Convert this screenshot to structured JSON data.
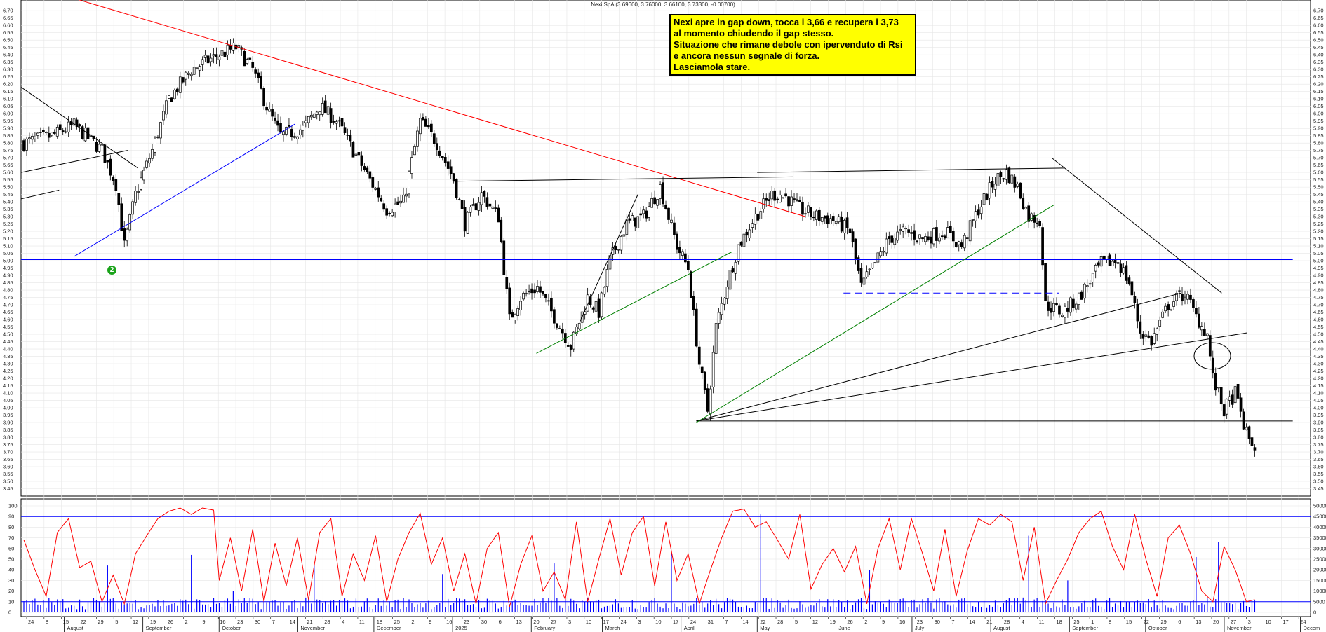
{
  "header": {
    "title": "Nexi SpA (3.69600, 3.76000, 3.66100, 3.73300, -0.00700)"
  },
  "note": {
    "lines": [
      "Nexi apre in gap down, tocca i 3,66 e recupera i 3,73",
      "al momento chiudendo il gap stesso.",
      "Situazione che rimane debole con ipervenduto di Rsi",
      "e ancora nessun segnale di forza.",
      "Lasciamola stare."
    ]
  },
  "badge": {
    "label": "2"
  },
  "chart_data": [
    {
      "type": "candlestick",
      "panel": "price",
      "ylim": [
        3.4,
        6.72
      ],
      "yticks": [
        "6.70",
        "6.65",
        "6.60",
        "6.55",
        "6.50",
        "6.45",
        "6.40",
        "6.35",
        "6.30",
        "6.25",
        "6.20",
        "6.15",
        "6.10",
        "6.05",
        "6.00",
        "5.95",
        "5.90",
        "5.85",
        "5.80",
        "5.75",
        "5.70",
        "5.65",
        "5.60",
        "5.55",
        "5.50",
        "5.45",
        "5.40",
        "5.35",
        "5.30",
        "5.25",
        "5.20",
        "5.15",
        "5.10",
        "5.05",
        "5.00",
        "4.95",
        "4.90",
        "4.85",
        "4.80",
        "4.75",
        "4.70",
        "4.65",
        "4.60",
        "4.55",
        "4.50",
        "4.45",
        "4.40",
        "4.35",
        "4.30",
        "4.25",
        "4.20",
        "4.15",
        "4.10",
        "4.05",
        "4.00",
        "3.95",
        "3.90",
        "3.85",
        "3.80",
        "3.75",
        "3.70",
        "3.65",
        "3.60",
        "3.55",
        "3.50",
        "3.45"
      ],
      "close_anchors": [
        [
          0,
          5.8
        ],
        [
          10,
          5.85
        ],
        [
          18,
          5.92
        ],
        [
          28,
          5.75
        ],
        [
          33,
          5.52
        ],
        [
          36,
          5.1
        ],
        [
          40,
          5.45
        ],
        [
          46,
          5.75
        ],
        [
          52,
          6.1
        ],
        [
          60,
          6.3
        ],
        [
          70,
          6.4
        ],
        [
          76,
          6.45
        ],
        [
          82,
          6.3
        ],
        [
          88,
          6.0
        ],
        [
          92,
          5.85
        ],
        [
          100,
          5.9
        ],
        [
          106,
          6.05
        ],
        [
          112,
          5.95
        ],
        [
          118,
          5.75
        ],
        [
          124,
          5.55
        ],
        [
          130,
          5.35
        ],
        [
          136,
          5.4
        ],
        [
          142,
          5.95
        ],
        [
          148,
          5.8
        ],
        [
          154,
          5.55
        ],
        [
          158,
          5.25
        ],
        [
          164,
          5.45
        ],
        [
          170,
          5.3
        ],
        [
          174,
          4.6
        ],
        [
          178,
          4.75
        ],
        [
          184,
          4.82
        ],
        [
          190,
          4.62
        ],
        [
          196,
          4.42
        ],
        [
          202,
          4.75
        ],
        [
          206,
          4.65
        ],
        [
          210,
          5.0
        ],
        [
          216,
          5.25
        ],
        [
          222,
          5.3
        ],
        [
          228,
          5.5
        ],
        [
          234,
          5.1
        ],
        [
          238,
          4.95
        ],
        [
          242,
          4.3
        ],
        [
          245,
          3.98
        ],
        [
          248,
          4.55
        ],
        [
          252,
          4.85
        ],
        [
          256,
          5.1
        ],
        [
          262,
          5.3
        ],
        [
          268,
          5.45
        ],
        [
          272,
          5.45
        ],
        [
          278,
          5.35
        ],
        [
          284,
          5.3
        ],
        [
          290,
          5.28
        ],
        [
          296,
          5.2
        ],
        [
          300,
          4.82
        ],
        [
          304,
          4.95
        ],
        [
          310,
          5.15
        ],
        [
          316,
          5.2
        ],
        [
          322,
          5.15
        ],
        [
          330,
          5.2
        ],
        [
          336,
          5.1
        ],
        [
          342,
          5.35
        ],
        [
          348,
          5.55
        ],
        [
          352,
          5.6
        ],
        [
          356,
          5.5
        ],
        [
          360,
          5.3
        ],
        [
          364,
          5.28
        ],
        [
          366,
          4.7
        ],
        [
          372,
          4.65
        ],
        [
          378,
          4.75
        ],
        [
          386,
          4.98
        ],
        [
          392,
          5.0
        ],
        [
          396,
          4.85
        ],
        [
          400,
          4.52
        ],
        [
          404,
          4.45
        ],
        [
          410,
          4.7
        ],
        [
          416,
          4.78
        ],
        [
          420,
          4.62
        ],
        [
          424,
          4.5
        ],
        [
          426,
          4.2
        ],
        [
          430,
          3.98
        ],
        [
          434,
          4.1
        ],
        [
          438,
          3.82
        ],
        [
          441,
          3.73
        ]
      ],
      "lines": [
        {
          "color": "#ff0000",
          "points": [
            [
              "2024-07-23",
              6.85
            ],
            [
              "2025-05-20",
              5.3
            ]
          ]
        },
        {
          "color": "#0000ff",
          "points": [
            [
              "2024-08-05",
              5.03
            ],
            [
              "2024-10-31",
              5.93
            ]
          ]
        },
        {
          "color": "#0000ff",
          "points": [
            [
              "2024-07-15",
              5.01
            ],
            [
              "2025-11-28",
              5.01
            ]
          ],
          "width": 2
        },
        {
          "color": "#000000",
          "points": [
            [
              "2024-07-15",
              5.97
            ],
            [
              "2025-11-28",
              5.97
            ]
          ]
        },
        {
          "color": "#000000",
          "points": [
            [
              "2025-02-01",
              4.36
            ],
            [
              "2025-11-28",
              4.36
            ]
          ]
        },
        {
          "color": "#000000",
          "points": [
            [
              "2025-04-07",
              3.91
            ],
            [
              "2025-11-28",
              3.91
            ]
          ]
        },
        {
          "color": "#000000",
          "points": [
            [
              "2024-07-15",
              6.18
            ],
            [
              "2024-08-30",
              5.63
            ]
          ]
        },
        {
          "color": "#000000",
          "points": [
            [
              "2024-07-15",
              5.42
            ],
            [
              "2024-07-30",
              5.48
            ]
          ]
        },
        {
          "color": "#000000",
          "points": [
            [
              "2024-07-15",
              5.6
            ],
            [
              "2024-08-26",
              5.75
            ]
          ]
        },
        {
          "color": "#000000",
          "points": [
            [
              "2025-01-01",
              5.54
            ],
            [
              "2025-05-15",
              5.57
            ]
          ]
        },
        {
          "color": "#000000",
          "points": [
            [
              "2025-05-01",
              5.6
            ],
            [
              "2025-08-30",
              5.63
            ]
          ]
        },
        {
          "color": "#000000",
          "points": [
            [
              "2025-08-25",
              5.7
            ],
            [
              "2025-10-31",
              4.78
            ]
          ]
        },
        {
          "color": "#000000",
          "points": [
            [
              "2025-02-20",
              4.58
            ],
            [
              "2025-03-15",
              5.45
            ]
          ]
        },
        {
          "color": "#000000",
          "points": [
            [
              "2025-04-07",
              3.91
            ],
            [
              "2025-11-10",
              4.51
            ]
          ]
        },
        {
          "color": "#000000",
          "points": [
            [
              "2025-04-07",
              3.91
            ],
            [
              "2025-10-15",
              4.78
            ]
          ]
        },
        {
          "color": "#008000",
          "points": [
            [
              "2025-02-03",
              4.37
            ],
            [
              "2025-04-21",
              5.06
            ]
          ]
        },
        {
          "color": "#008000",
          "points": [
            [
              "2025-04-07",
              3.9
            ],
            [
              "2025-08-26",
              5.38
            ]
          ]
        },
        {
          "color": "#0000ff",
          "points": [
            [
              "2025-06-04",
              4.78
            ],
            [
              "2025-08-28",
              4.78
            ]
          ],
          "dash": "10,6"
        }
      ]
    },
    {
      "type": "line+bar",
      "panel": "rsi_volume",
      "ylim_rsi": [
        0,
        100
      ],
      "yticks_rsi": [
        "100",
        "90",
        "80",
        "70",
        "60",
        "50",
        "40",
        "30",
        "20",
        "10",
        "0"
      ],
      "ylim_volume": [
        0,
        50000
      ],
      "yticks_volume": [
        "50000",
        "45000",
        "40000",
        "35000",
        "30000",
        "25000",
        "20000",
        "15000",
        "10000",
        "5000",
        "0"
      ],
      "hlines_rsi": [
        90,
        10
      ],
      "rsi_anchors": [
        [
          0,
          68
        ],
        [
          4,
          40
        ],
        [
          8,
          15
        ],
        [
          12,
          75
        ],
        [
          16,
          88
        ],
        [
          20,
          42
        ],
        [
          24,
          48
        ],
        [
          28,
          10
        ],
        [
          32,
          35
        ],
        [
          36,
          8
        ],
        [
          40,
          55
        ],
        [
          44,
          72
        ],
        [
          48,
          88
        ],
        [
          52,
          95
        ],
        [
          56,
          98
        ],
        [
          60,
          92
        ],
        [
          64,
          98
        ],
        [
          68,
          96
        ],
        [
          70,
          30
        ],
        [
          74,
          70
        ],
        [
          78,
          20
        ],
        [
          82,
          78
        ],
        [
          86,
          10
        ],
        [
          90,
          65
        ],
        [
          94,
          25
        ],
        [
          98,
          70
        ],
        [
          102,
          12
        ],
        [
          106,
          75
        ],
        [
          110,
          88
        ],
        [
          114,
          15
        ],
        [
          118,
          55
        ],
        [
          122,
          30
        ],
        [
          126,
          72
        ],
        [
          130,
          10
        ],
        [
          134,
          50
        ],
        [
          138,
          75
        ],
        [
          142,
          93
        ],
        [
          146,
          45
        ],
        [
          150,
          70
        ],
        [
          154,
          20
        ],
        [
          158,
          55
        ],
        [
          162,
          8
        ],
        [
          166,
          60
        ],
        [
          170,
          75
        ],
        [
          174,
          5
        ],
        [
          178,
          45
        ],
        [
          182,
          72
        ],
        [
          186,
          20
        ],
        [
          190,
          38
        ],
        [
          194,
          12
        ],
        [
          198,
          85
        ],
        [
          202,
          10
        ],
        [
          206,
          50
        ],
        [
          210,
          88
        ],
        [
          214,
          35
        ],
        [
          218,
          75
        ],
        [
          222,
          90
        ],
        [
          226,
          25
        ],
        [
          230,
          85
        ],
        [
          234,
          30
        ],
        [
          238,
          55
        ],
        [
          242,
          8
        ],
        [
          246,
          40
        ],
        [
          250,
          70
        ],
        [
          254,
          95
        ],
        [
          258,
          97
        ],
        [
          262,
          80
        ],
        [
          266,
          85
        ],
        [
          270,
          68
        ],
        [
          274,
          50
        ],
        [
          278,
          92
        ],
        [
          282,
          22
        ],
        [
          286,
          45
        ],
        [
          290,
          60
        ],
        [
          294,
          38
        ],
        [
          298,
          62
        ],
        [
          302,
          8
        ],
        [
          306,
          60
        ],
        [
          310,
          88
        ],
        [
          314,
          40
        ],
        [
          318,
          88
        ],
        [
          322,
          55
        ],
        [
          326,
          20
        ],
        [
          330,
          78
        ],
        [
          334,
          15
        ],
        [
          338,
          58
        ],
        [
          342,
          88
        ],
        [
          346,
          82
        ],
        [
          350,
          92
        ],
        [
          354,
          85
        ],
        [
          358,
          30
        ],
        [
          362,
          80
        ],
        [
          366,
          8
        ],
        [
          370,
          30
        ],
        [
          374,
          50
        ],
        [
          378,
          75
        ],
        [
          382,
          88
        ],
        [
          386,
          95
        ],
        [
          390,
          62
        ],
        [
          394,
          40
        ],
        [
          398,
          92
        ],
        [
          402,
          50
        ],
        [
          406,
          15
        ],
        [
          410,
          70
        ],
        [
          414,
          82
        ],
        [
          418,
          55
        ],
        [
          422,
          20
        ],
        [
          426,
          10
        ],
        [
          430,
          62
        ],
        [
          434,
          40
        ],
        [
          438,
          10
        ],
        [
          441,
          12
        ]
      ],
      "volume_spikes": [
        [
          30,
          22000
        ],
        [
          60,
          27000
        ],
        [
          75,
          10000
        ],
        [
          104,
          22000
        ],
        [
          150,
          18000
        ],
        [
          190,
          23000
        ],
        [
          232,
          28000
        ],
        [
          264,
          46000
        ],
        [
          303,
          20000
        ],
        [
          360,
          36000
        ],
        [
          374,
          15000
        ],
        [
          420,
          26000
        ],
        [
          428,
          33000
        ]
      ]
    }
  ],
  "x_axis": {
    "day_ticks": [
      "24",
      "8",
      "15",
      "22",
      "29",
      "5",
      "12",
      "19",
      "26",
      "2",
      "9",
      "16",
      "23",
      "30",
      "7",
      "14",
      "21",
      "28",
      "4",
      "11",
      "18",
      "25",
      "2",
      "9",
      "16",
      "23",
      "30",
      "6",
      "13",
      "20",
      "27",
      "3",
      "10",
      "17",
      "24",
      "3",
      "10",
      "17",
      "24",
      "31",
      "7",
      "14",
      "22",
      "28",
      "5",
      "12",
      "19",
      "26",
      "2",
      "9",
      "16",
      "23",
      "30",
      "7",
      "14",
      "21",
      "28",
      "4",
      "11",
      "18",
      "25",
      "1",
      "8",
      "15",
      "22",
      "29",
      "6",
      "13",
      "20",
      "27",
      "3",
      "10",
      "17",
      "24"
    ],
    "months": [
      {
        "label": "July",
        "date": "2024-07-01"
      },
      {
        "label": "August",
        "date": "2024-08-01"
      },
      {
        "label": "September",
        "date": "2024-09-01"
      },
      {
        "label": "October",
        "date": "2024-10-01"
      },
      {
        "label": "November",
        "date": "2024-11-01"
      },
      {
        "label": "December",
        "date": "2024-12-01"
      },
      {
        "label": "2025",
        "date": "2025-01-01"
      },
      {
        "label": "February",
        "date": "2025-02-01"
      },
      {
        "label": "March",
        "date": "2025-03-01"
      },
      {
        "label": "April",
        "date": "2025-04-01"
      },
      {
        "label": "May",
        "date": "2025-05-01"
      },
      {
        "label": "June",
        "date": "2025-06-01"
      },
      {
        "label": "July",
        "date": "2025-07-01"
      },
      {
        "label": "August",
        "date": "2025-08-01"
      },
      {
        "label": "September",
        "date": "2025-09-01"
      },
      {
        "label": "October",
        "date": "2025-10-01"
      },
      {
        "label": "November",
        "date": "2025-11-01"
      },
      {
        "label": "Decem",
        "date": "2025-12-01"
      }
    ],
    "range": [
      "2024-07-15",
      "2025-12-05"
    ]
  },
  "colors": {
    "candle": "#000000",
    "rsi": "#ff0000",
    "volume": "#0000ff",
    "grid": "#e6e6e6"
  }
}
